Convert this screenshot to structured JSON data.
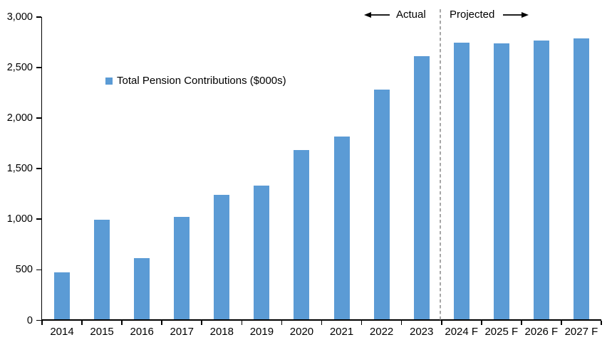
{
  "chart_data": {
    "type": "bar",
    "title": "",
    "legend_label": "Total Pension Contributions ($000s)",
    "categories": [
      "2014",
      "2015",
      "2016",
      "2017",
      "2018",
      "2019",
      "2020",
      "2021",
      "2022",
      "2023",
      "2024 F",
      "2025 F",
      "2026 F",
      "2027 F"
    ],
    "values": [
      475,
      995,
      615,
      1025,
      1245,
      1330,
      1685,
      1815,
      2280,
      2615,
      2750,
      2740,
      2770,
      2790
    ],
    "ylim": [
      0,
      3000
    ],
    "ytick_values": [
      0,
      500,
      1000,
      1500,
      2000,
      2500,
      3000
    ],
    "ytick_labels": [
      "0",
      "500",
      "1,000",
      "1,500",
      "2,000",
      "2,500",
      "3,000"
    ],
    "xlabel": "",
    "ylabel": "",
    "grid": false,
    "legend_position": "inside-upper-left",
    "annotations": {
      "actual": "Actual",
      "projected": "Projected"
    },
    "divider_after_category": "2023",
    "colors": {
      "bar": "#5B9BD5",
      "divider": "#A6A6A6",
      "axis": "#000000",
      "text": "#000000"
    }
  }
}
